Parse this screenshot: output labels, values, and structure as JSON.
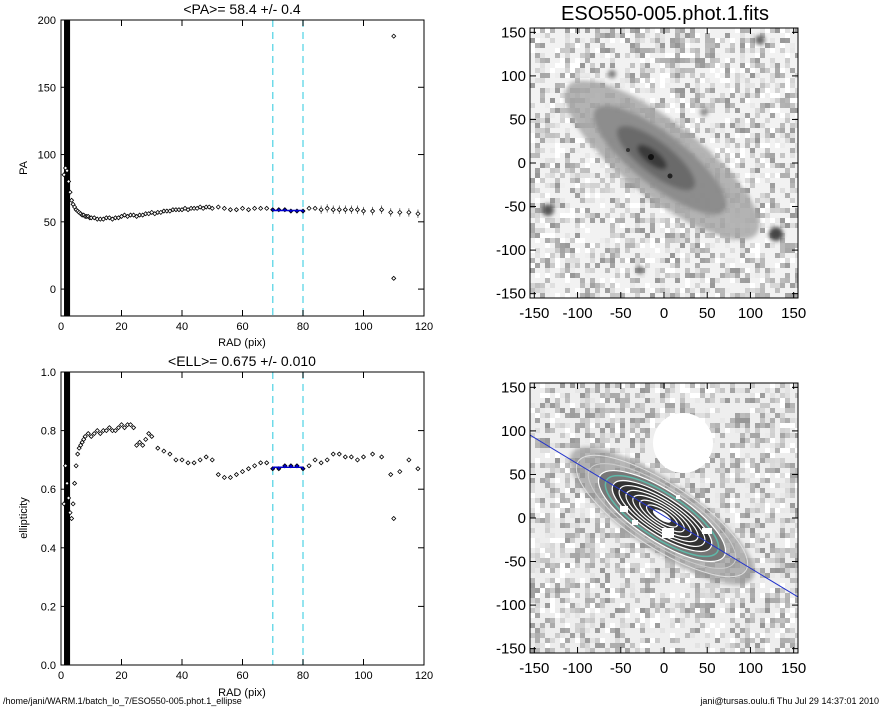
{
  "chart_data": [
    {
      "type": "scatter",
      "title": "<PA>=  58.4 +/-   0.4",
      "xlabel": "RAD (pix)",
      "ylabel": "PA",
      "xlim": [
        0,
        120
      ],
      "ylim": [
        -20,
        200
      ],
      "xticks": [
        "0",
        "20",
        "40",
        "60",
        "80",
        "100",
        "120"
      ],
      "yticks": [
        "0",
        "50",
        "100",
        "150",
        "200"
      ],
      "fit_range": [
        70,
        80
      ],
      "fit_value": 58.4,
      "series": [
        {
          "x": [
            1,
            1.5,
            2,
            2.5,
            3,
            3.5,
            4,
            4.5,
            5,
            5.5,
            6,
            6.5,
            7,
            7.5,
            8,
            8.5,
            9,
            9.5,
            10,
            11,
            12,
            13,
            14,
            15,
            16,
            17,
            18,
            19,
            20,
            21,
            22,
            23,
            24,
            25,
            26,
            27,
            28,
            29,
            30,
            31,
            32,
            33,
            34,
            35,
            36,
            37,
            38,
            39,
            40,
            41,
            42,
            43,
            44,
            45,
            46,
            47,
            48,
            49,
            50,
            52,
            54,
            56,
            58,
            60,
            62,
            64,
            66,
            68,
            70,
            72,
            74,
            76,
            78,
            80,
            82,
            84,
            86,
            88,
            90,
            92,
            94,
            96,
            98,
            100,
            103,
            106,
            109,
            112,
            115,
            118
          ],
          "y": [
            85,
            90,
            88,
            80,
            72,
            66,
            63,
            61,
            59,
            58,
            57,
            56,
            55,
            55,
            54,
            54,
            54,
            53,
            53,
            53,
            52,
            52,
            52,
            53,
            53,
            52,
            53,
            53,
            54,
            55,
            54,
            55,
            55,
            54,
            55,
            55,
            56,
            56,
            57,
            56,
            57,
            57,
            58,
            58,
            58,
            59,
            59,
            59,
            59,
            60,
            59,
            60,
            60,
            60,
            61,
            60,
            61,
            61,
            60,
            61,
            60,
            59,
            59,
            60,
            59,
            60,
            60,
            60,
            59,
            59,
            59,
            58,
            58,
            58,
            60,
            60,
            59,
            60,
            59,
            59,
            59,
            59,
            59,
            58,
            58,
            59,
            57,
            57,
            57,
            56
          ]
        },
        {
          "x": [
            110,
            110
          ],
          "y": [
            188,
            8
          ]
        }
      ]
    },
    {
      "type": "heatmap",
      "title": "ESO550-005.phot.1.fits",
      "xticks": [
        "-150",
        "-100",
        "-50",
        "0",
        "50",
        "100",
        "150"
      ],
      "yticks": [
        "150",
        "100",
        "50",
        "0",
        "-50",
        "-100",
        "-150"
      ],
      "xlim": [
        -155,
        155
      ],
      "ylim": [
        -155,
        155
      ]
    },
    {
      "type": "scatter",
      "title": "<ELL>= 0.675 +/-  0.010",
      "xlabel": "RAD (pix)",
      "ylabel": "ellipticity",
      "xlim": [
        0,
        120
      ],
      "ylim": [
        0,
        1
      ],
      "xticks": [
        "0",
        "20",
        "40",
        "60",
        "80",
        "100",
        "120"
      ],
      "yticks": [
        "0.0",
        "0.2",
        "0.4",
        "0.6",
        "0.8",
        "1.0"
      ],
      "fit_range": [
        70,
        80
      ],
      "fit_value": 0.675,
      "series": [
        {
          "x": [
            1,
            1.5,
            2,
            2.5,
            3,
            3.5,
            4,
            4.5,
            5,
            5.5,
            6,
            6.5,
            7,
            7.5,
            8,
            9,
            10,
            11,
            12,
            13,
            14,
            15,
            16,
            17,
            18,
            19,
            20,
            21,
            22,
            23,
            24,
            25,
            26,
            27,
            28,
            29,
            30,
            32,
            34,
            36,
            38,
            40,
            42,
            44,
            46,
            48,
            50,
            52,
            54,
            56,
            58,
            60,
            62,
            64,
            66,
            68,
            70,
            72,
            74,
            76,
            78,
            80,
            82,
            84,
            86,
            88,
            90,
            92,
            94,
            96,
            98,
            100,
            103,
            106,
            109,
            112,
            115,
            118
          ],
          "y": [
            0.55,
            0.68,
            0.62,
            0.57,
            0.52,
            0.5,
            0.55,
            0.62,
            0.68,
            0.72,
            0.74,
            0.75,
            0.76,
            0.77,
            0.78,
            0.79,
            0.78,
            0.79,
            0.8,
            0.79,
            0.8,
            0.8,
            0.81,
            0.8,
            0.8,
            0.81,
            0.82,
            0.81,
            0.82,
            0.82,
            0.81,
            0.75,
            0.76,
            0.75,
            0.77,
            0.79,
            0.78,
            0.74,
            0.73,
            0.72,
            0.7,
            0.7,
            0.69,
            0.69,
            0.7,
            0.71,
            0.7,
            0.65,
            0.64,
            0.64,
            0.65,
            0.66,
            0.67,
            0.68,
            0.69,
            0.69,
            0.67,
            0.67,
            0.68,
            0.68,
            0.68,
            0.67,
            0.68,
            0.7,
            0.69,
            0.7,
            0.72,
            0.72,
            0.71,
            0.71,
            0.7,
            0.71,
            0.72,
            0.71,
            0.65,
            0.66,
            0.7,
            0.67
          ]
        },
        {
          "x": [
            110
          ],
          "y": [
            0.5
          ]
        }
      ]
    },
    {
      "type": "heatmap",
      "title": "",
      "xticks": [
        "-150",
        "-100",
        "-50",
        "0",
        "50",
        "100",
        "150"
      ],
      "yticks": [
        "150",
        "100",
        "50",
        "0",
        "-50",
        "-100",
        "-150"
      ],
      "xlim": [
        -155,
        155
      ],
      "ylim": [
        -155,
        155
      ]
    }
  ],
  "footer": {
    "left": "/home/jani/WARM.1/batch_lo_7/ESO550-005.phot.1_ellipse",
    "right": "jani@tursas.oulu.fi  Thu Jul 29 14:37:01 2010"
  },
  "colors": {
    "fit_line": "#0000cc",
    "range_marker": "#66d8e8",
    "axes": "#000000"
  }
}
